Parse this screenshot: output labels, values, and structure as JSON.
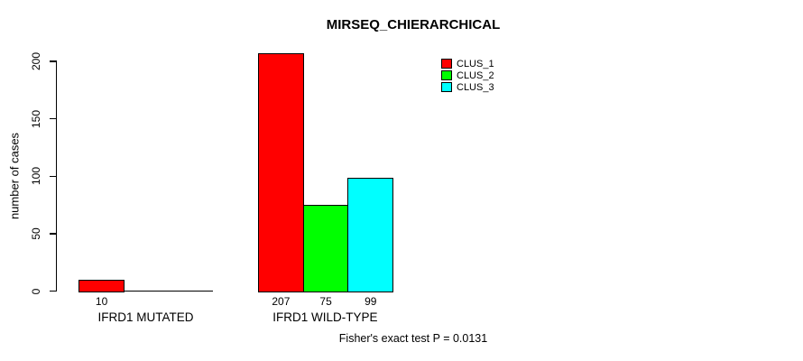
{
  "chart_data": {
    "type": "bar",
    "title": "MIRSEQ_CHIERARCHICAL",
    "xlabel": "",
    "ylabel": "number of cases",
    "categories": [
      "IFRD1 MUTATED",
      "IFRD1 WILD-TYPE"
    ],
    "series": [
      {
        "name": "CLUS_1",
        "color": "#ff0000",
        "values": [
          10,
          207
        ]
      },
      {
        "name": "CLUS_2",
        "color": "#00ff00",
        "values": [
          0,
          75
        ]
      },
      {
        "name": "CLUS_3",
        "color": "#00ffff",
        "values": [
          0,
          99
        ]
      }
    ],
    "bar_value_labels": [
      {
        "category": "IFRD1 MUTATED",
        "labels": [
          "10"
        ]
      },
      {
        "category": "IFRD1 WILD-TYPE",
        "labels": [
          "207",
          "75",
          "99"
        ]
      }
    ],
    "ylim": [
      0,
      200
    ],
    "yticks": [
      0,
      50,
      100,
      150,
      200
    ],
    "grid": false,
    "legend_position": "top-right",
    "legend_border": false,
    "annotation": "Fisher's exact test P = 0.0131",
    "background_color": "#ffffff",
    "axis_color": "#000000"
  }
}
